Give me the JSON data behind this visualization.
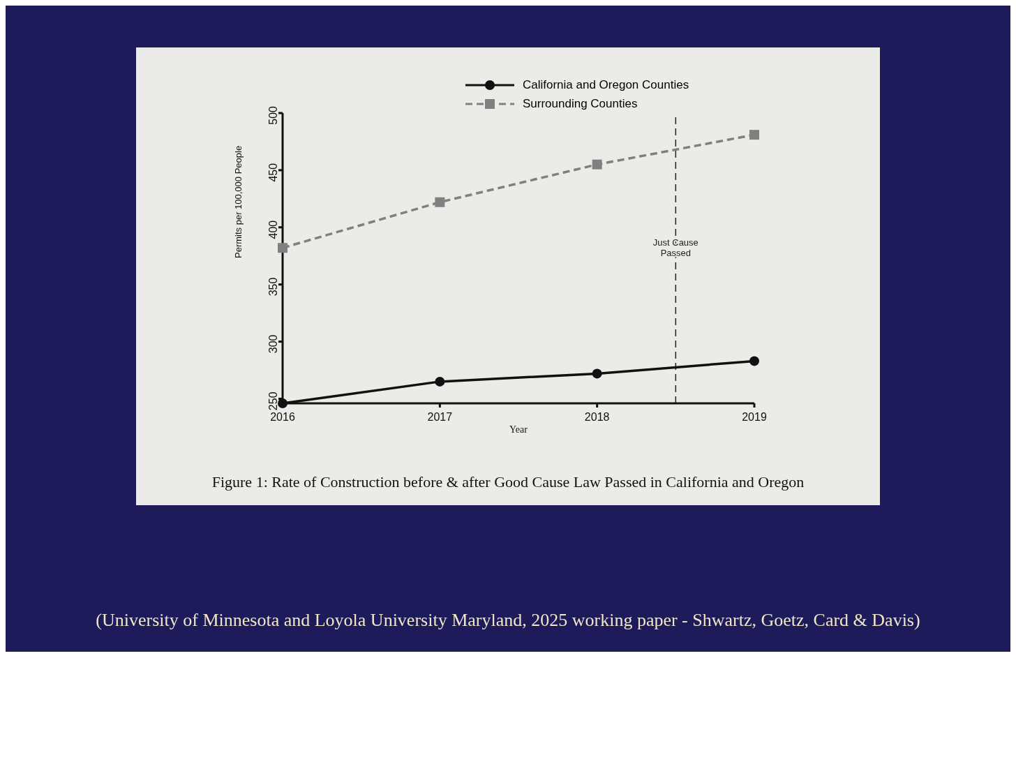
{
  "chart_data": {
    "type": "line",
    "xlabel": "Year",
    "ylabel": "Permits per 100,000 People",
    "x": [
      2016,
      2017,
      2018,
      2019
    ],
    "series": [
      {
        "name": "California and Oregon Counties",
        "color": "#111111",
        "values": [
          246,
          265,
          272,
          283
        ],
        "marker": "circle",
        "line_style": "solid"
      },
      {
        "name": "Surrounding Counties",
        "color": "#808080",
        "values": [
          382,
          422,
          455,
          481
        ],
        "marker": "square",
        "line_style": "dashed"
      }
    ],
    "xlim": [
      2016,
      2019
    ],
    "xticks": [
      2016,
      2017,
      2018,
      2019
    ],
    "ylim": [
      246,
      500
    ],
    "yticks": [
      250,
      300,
      350,
      400,
      450,
      500
    ],
    "ref_lines": [
      {
        "axis": "x",
        "value": 2018.5,
        "label": "Just Cause Passed",
        "color": "#222222",
        "line_style": "dashed"
      }
    ],
    "legend": "top",
    "grid": false,
    "annotations": [
      "Figure 1: Rate of Construction before & after Good Cause Law Passed in California and Oregon",
      "(University of Minnesota and Loyola University Maryland, 2025 working paper - Shwartz, Goetz, Card & Davis)"
    ]
  }
}
